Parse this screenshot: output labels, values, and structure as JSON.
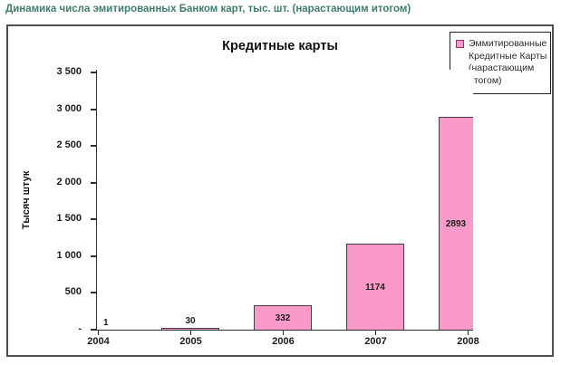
{
  "page": {
    "header": "Динамика числа эмитированных Банком карт, тыс. шт. (нарастающим итогом)"
  },
  "chart": {
    "title": "Кредитные карты",
    "y_axis_label": "Тысяч штук",
    "legend_lines": [
      "Эммитированные",
      "Кредитные Карты",
      "(нарастающим",
      "итогом)"
    ]
  },
  "chart_data": {
    "type": "bar",
    "title": "Кредитные карты",
    "series_name": "Эммитированные Кредитные Карты (нарастающим итогом)",
    "categories": [
      "2004",
      "2005",
      "2006",
      "2007",
      "2008"
    ],
    "values": [
      1,
      30,
      332,
      1174,
      2893
    ],
    "bar_labels": [
      "1",
      "30",
      "332",
      "1174",
      "2893"
    ],
    "xlabel": "",
    "ylabel": "Тысяч штук",
    "ylim": [
      0,
      3500
    ],
    "y_ticks_bottom_to_top": [
      "-",
      "500",
      "1 000",
      "1 500",
      "2 000",
      "2 500",
      "3 000",
      "3 500"
    ],
    "grid": false,
    "legend_position": "top-right",
    "colors": {
      "bar_fill": "#f99ac8",
      "bar_border": "#473947",
      "legend_marker_border": "#993366",
      "header_text": "#3e7d6e",
      "axis": "#2f2f2f"
    }
  }
}
